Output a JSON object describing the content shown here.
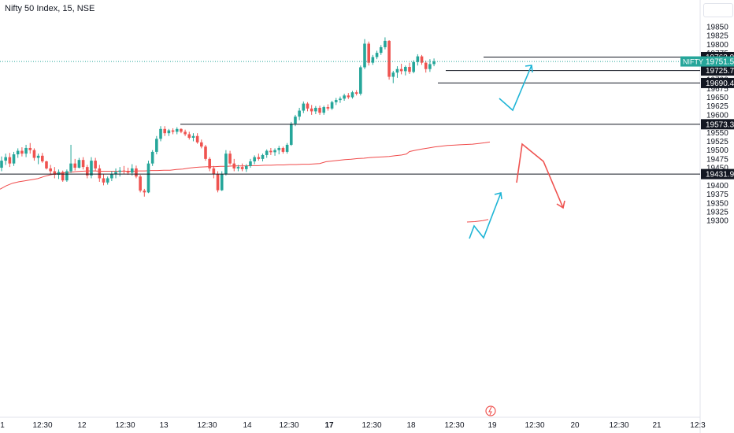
{
  "header": {
    "symbol_title": "Nifty 50 Index, 15, NSE"
  },
  "colors": {
    "up": "#26a69a",
    "down": "#ef5350",
    "ma_line": "#f04a4a",
    "projection_up": "#1fb5d6",
    "projection_down": "#ef5350",
    "level_line": "#131722",
    "current_price": "#26a69a"
  },
  "chart_data": {
    "type": "candlestick",
    "symbol": "Nifty 50 Index",
    "timeframe": "15",
    "exchange": "NSE",
    "ylim": [
      19300,
      19875
    ],
    "y_ticks": [
      19850,
      19825,
      19800,
      19775,
      19750,
      19725,
      19700,
      19675,
      19650,
      19625,
      19600,
      19575,
      19550,
      19525,
      19500,
      19475,
      19450,
      19425,
      19400,
      19375,
      19350,
      19325,
      19300
    ],
    "x_ticks": [
      "1",
      "12:30",
      "12",
      "12:30",
      "13",
      "12:30",
      "14",
      "12:30",
      "17",
      "12:30",
      "18",
      "12:30",
      "19",
      "12:30",
      "20",
      "12:30",
      "21",
      "12:3"
    ],
    "x_tick_bold": [
      false,
      false,
      false,
      false,
      false,
      false,
      false,
      false,
      true,
      false,
      false,
      false,
      false,
      false,
      false,
      false,
      false,
      false
    ],
    "current_price": {
      "label": "NIFTY",
      "value": "19751.55"
    },
    "levels": [
      "19763.95",
      "19725.70",
      "19690.40",
      "19573.35",
      "19431.95"
    ],
    "candles": [
      [
        19450,
        19482,
        19440,
        19470
      ],
      [
        19470,
        19490,
        19458,
        19480
      ],
      [
        19480,
        19492,
        19452,
        19462
      ],
      [
        19462,
        19495,
        19455,
        19488
      ],
      [
        19488,
        19505,
        19478,
        19498
      ],
      [
        19498,
        19508,
        19482,
        19490
      ],
      [
        19490,
        19515,
        19480,
        19506
      ],
      [
        19506,
        19520,
        19490,
        19500
      ],
      [
        19500,
        19505,
        19470,
        19478
      ],
      [
        19478,
        19490,
        19460,
        19484
      ],
      [
        19484,
        19492,
        19464,
        19468
      ],
      [
        19468,
        19470,
        19445,
        19448
      ],
      [
        19448,
        19458,
        19432,
        19440
      ],
      [
        19440,
        19452,
        19420,
        19430
      ],
      [
        19430,
        19445,
        19418,
        19438
      ],
      [
        19438,
        19442,
        19410,
        19414
      ],
      [
        19414,
        19445,
        19410,
        19440
      ],
      [
        19440,
        19515,
        19435,
        19462
      ],
      [
        19462,
        19475,
        19442,
        19450
      ],
      [
        19450,
        19478,
        19448,
        19472
      ],
      [
        19472,
        19480,
        19445,
        19452
      ],
      [
        19452,
        19458,
        19420,
        19428
      ],
      [
        19428,
        19480,
        19420,
        19470
      ],
      [
        19470,
        19478,
        19440,
        19448
      ],
      [
        19448,
        19458,
        19410,
        19420
      ],
      [
        19420,
        19432,
        19400,
        19408
      ],
      [
        19408,
        19425,
        19402,
        19420
      ],
      [
        19420,
        19440,
        19412,
        19432
      ],
      [
        19432,
        19448,
        19420,
        19438
      ],
      [
        19438,
        19452,
        19425,
        19442
      ],
      [
        19442,
        19455,
        19432,
        19440
      ],
      [
        19440,
        19450,
        19430,
        19436
      ],
      [
        19436,
        19460,
        19428,
        19448
      ],
      [
        19448,
        19456,
        19420,
        19425
      ],
      [
        19425,
        19430,
        19380,
        19385
      ],
      [
        19385,
        19390,
        19368,
        19380
      ],
      [
        19380,
        19470,
        19378,
        19462
      ],
      [
        19462,
        19500,
        19455,
        19495
      ],
      [
        19495,
        19540,
        19488,
        19532
      ],
      [
        19532,
        19568,
        19525,
        19560
      ],
      [
        19560,
        19568,
        19540,
        19548
      ],
      [
        19548,
        19560,
        19540,
        19556
      ],
      [
        19556,
        19562,
        19545,
        19552
      ],
      [
        19552,
        19565,
        19545,
        19560
      ],
      [
        19560,
        19562,
        19548,
        19552
      ],
      [
        19552,
        19558,
        19540,
        19545
      ],
      [
        19545,
        19552,
        19530,
        19535
      ],
      [
        19535,
        19548,
        19525,
        19540
      ],
      [
        19540,
        19548,
        19518,
        19522
      ],
      [
        19522,
        19530,
        19505,
        19510
      ],
      [
        19510,
        19515,
        19470,
        19475
      ],
      [
        19475,
        19480,
        19440,
        19448
      ],
      [
        19448,
        19455,
        19420,
        19432
      ],
      [
        19432,
        19440,
        19380,
        19386
      ],
      [
        19386,
        19440,
        19384,
        19432
      ],
      [
        19432,
        19500,
        19428,
        19490
      ],
      [
        19490,
        19498,
        19458,
        19462
      ],
      [
        19462,
        19475,
        19440,
        19448
      ],
      [
        19448,
        19458,
        19440,
        19452
      ],
      [
        19452,
        19462,
        19440,
        19446
      ],
      [
        19446,
        19460,
        19438,
        19455
      ],
      [
        19455,
        19475,
        19450,
        19468
      ],
      [
        19468,
        19485,
        19460,
        19480
      ],
      [
        19480,
        19490,
        19470,
        19475
      ],
      [
        19475,
        19490,
        19468,
        19486
      ],
      [
        19486,
        19502,
        19478,
        19498
      ],
      [
        19498,
        19506,
        19486,
        19494
      ],
      [
        19494,
        19505,
        19484,
        19500
      ],
      [
        19500,
        19512,
        19488,
        19506
      ],
      [
        19506,
        19510,
        19490,
        19495
      ],
      [
        19495,
        19520,
        19490,
        19515
      ],
      [
        19515,
        19580,
        19512,
        19575
      ],
      [
        19575,
        19600,
        19568,
        19595
      ],
      [
        19595,
        19620,
        19585,
        19612
      ],
      [
        19612,
        19638,
        19605,
        19632
      ],
      [
        19632,
        19636,
        19610,
        19618
      ],
      [
        19618,
        19628,
        19600,
        19610
      ],
      [
        19610,
        19625,
        19602,
        19620
      ],
      [
        19620,
        19626,
        19600,
        19606
      ],
      [
        19606,
        19626,
        19600,
        19622
      ],
      [
        19622,
        19630,
        19612,
        19618
      ],
      [
        19618,
        19640,
        19614,
        19636
      ],
      [
        19636,
        19648,
        19628,
        19642
      ],
      [
        19642,
        19652,
        19634,
        19646
      ],
      [
        19646,
        19660,
        19640,
        19655
      ],
      [
        19655,
        19662,
        19645,
        19650
      ],
      [
        19650,
        19668,
        19646,
        19664
      ],
      [
        19664,
        19670,
        19655,
        19660
      ],
      [
        19660,
        19740,
        19655,
        19735
      ],
      [
        19735,
        19815,
        19730,
        19802
      ],
      [
        19802,
        19808,
        19740,
        19748
      ],
      [
        19748,
        19770,
        19742,
        19764
      ],
      [
        19764,
        19782,
        19758,
        19776
      ],
      [
        19776,
        19798,
        19770,
        19792
      ],
      [
        19792,
        19820,
        19786,
        19810
      ],
      [
        19810,
        19812,
        19700,
        19708
      ],
      [
        19708,
        19725,
        19690,
        19720
      ],
      [
        19720,
        19738,
        19705,
        19730
      ],
      [
        19730,
        19745,
        19715,
        19724
      ],
      [
        19724,
        19740,
        19712,
        19736
      ],
      [
        19736,
        19748,
        19716,
        19722
      ],
      [
        19722,
        19755,
        19718,
        19750
      ],
      [
        19750,
        19772,
        19740,
        19766
      ],
      [
        19766,
        19770,
        19742,
        19748
      ],
      [
        19748,
        19754,
        19720,
        19730
      ],
      [
        19730,
        19758,
        19722,
        19744
      ],
      [
        19744,
        19760,
        19738,
        19752
      ]
    ],
    "ma_line": [
      [
        0,
        19389
      ],
      [
        8,
        19399
      ],
      [
        16,
        19406
      ],
      [
        24,
        19410
      ],
      [
        32,
        19413
      ],
      [
        40,
        19416
      ],
      [
        48,
        19419
      ],
      [
        56,
        19425
      ],
      [
        64,
        19430
      ],
      [
        72,
        19433
      ],
      [
        80,
        19435
      ],
      [
        88,
        19437
      ],
      [
        96,
        19439
      ],
      [
        104,
        19440
      ],
      [
        112,
        19441
      ],
      [
        120,
        19441
      ],
      [
        128,
        19440
      ],
      [
        136,
        19440
      ],
      [
        144,
        19440
      ],
      [
        152,
        19440
      ],
      [
        160,
        19440
      ],
      [
        168,
        19440
      ],
      [
        176,
        19441
      ],
      [
        184,
        19441
      ],
      [
        192,
        19442
      ],
      [
        200,
        19442
      ],
      [
        208,
        19443
      ],
      [
        216,
        19443
      ],
      [
        224,
        19445
      ],
      [
        232,
        19446
      ],
      [
        240,
        19449
      ],
      [
        248,
        19451
      ],
      [
        256,
        19452
      ],
      [
        264,
        19453
      ],
      [
        272,
        19453
      ],
      [
        280,
        19454
      ],
      [
        288,
        19454
      ],
      [
        296,
        19455
      ],
      [
        304,
        19455
      ],
      [
        312,
        19455
      ],
      [
        320,
        19456
      ],
      [
        328,
        19456
      ],
      [
        336,
        19457
      ],
      [
        344,
        19457
      ],
      [
        352,
        19458
      ],
      [
        360,
        19458
      ],
      [
        368,
        19459
      ],
      [
        376,
        19459
      ],
      [
        384,
        19460
      ],
      [
        392,
        19460
      ],
      [
        400,
        19461
      ],
      [
        406,
        19462
      ],
      [
        414,
        19467
      ],
      [
        422,
        19469
      ],
      [
        430,
        19471
      ],
      [
        438,
        19473
      ],
      [
        446,
        19474
      ],
      [
        454,
        19476
      ],
      [
        462,
        19477
      ],
      [
        470,
        19479
      ],
      [
        478,
        19480
      ],
      [
        486,
        19481
      ],
      [
        494,
        19482
      ],
      [
        502,
        19484
      ],
      [
        510,
        19486
      ],
      [
        516,
        19489
      ],
      [
        520,
        19496
      ],
      [
        528,
        19500
      ],
      [
        536,
        19503
      ],
      [
        544,
        19506
      ],
      [
        552,
        19509
      ],
      [
        560,
        19511
      ],
      [
        568,
        19513
      ],
      [
        576,
        19514
      ],
      [
        584,
        19515
      ],
      [
        592,
        19516
      ],
      [
        600,
        19517
      ],
      [
        608,
        19519
      ],
      [
        616,
        19521
      ],
      [
        622,
        19523
      ]
    ],
    "ma_line_lower": [
      [
        593,
        19296
      ],
      [
        603,
        19297
      ],
      [
        613,
        19300
      ],
      [
        620,
        19303
      ]
    ]
  }
}
